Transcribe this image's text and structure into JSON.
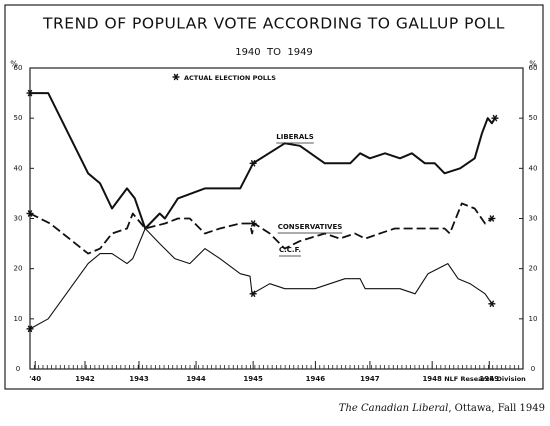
{
  "chart_data": {
    "type": "line",
    "title": "TREND OF POPULAR VOTE ACCORDING TO GALLUP POLL",
    "subtitle": "1940  TO  1949",
    "y_label": "%",
    "y2_label": "%",
    "xlim": [
      1940,
      1949.5
    ],
    "xticks": [
      {
        "value": 1940.1,
        "label": "'40"
      },
      {
        "value": 1941.06,
        "label": "1942"
      },
      {
        "value": 1942.1,
        "label": "1943"
      },
      {
        "value": 1943.2,
        "label": "1944"
      },
      {
        "value": 1944.3,
        "label": "1945"
      },
      {
        "value": 1945.5,
        "label": "1946"
      },
      {
        "value": 1946.55,
        "label": "1947"
      },
      {
        "value": 1947.75,
        "label": "1948"
      },
      {
        "value": 1948.85,
        "label": "1949"
      }
    ],
    "ylim": [
      0,
      60
    ],
    "yticks": [
      0,
      10,
      20,
      30,
      40,
      50,
      60
    ],
    "y2lim": [
      0,
      60
    ],
    "y2ticks": [
      0,
      10,
      20,
      30,
      40,
      50,
      60
    ],
    "series": [
      {
        "name": "LIBERALS",
        "color": "#111",
        "style": "solid",
        "x": [
          1940.0,
          1940.35,
          1941.12,
          1941.35,
          1941.58,
          1941.87,
          1942.02,
          1942.22,
          1942.5,
          1942.6,
          1942.85,
          1943.37,
          1944.05,
          1944.2,
          1944.3,
          1944.91,
          1945.2,
          1945.68,
          1946.17,
          1946.36,
          1946.55,
          1946.84,
          1947.13,
          1947.36,
          1947.61,
          1947.8,
          1947.99,
          1948.29,
          1948.57,
          1948.71,
          1948.82,
          1948.9,
          1948.96
        ],
        "values": [
          55,
          55,
          39,
          37,
          32,
          36,
          34,
          28,
          31,
          30,
          34,
          36,
          36,
          39,
          41,
          45,
          44.5,
          41,
          41,
          43,
          42,
          43,
          42,
          43,
          41,
          41,
          39,
          40,
          42,
          47,
          50,
          49,
          50
        ]
      },
      {
        "name": "CONSERVATIVES",
        "color": "#111",
        "style": "dashed",
        "x": [
          1940.0,
          1940.39,
          1941.12,
          1941.35,
          1941.58,
          1941.87,
          1941.98,
          1942.22,
          1942.6,
          1942.85,
          1943.08,
          1943.37,
          1943.66,
          1944.05,
          1944.24,
          1944.28,
          1944.32,
          1944.62,
          1944.91,
          1945.2,
          1945.68,
          1945.97,
          1946.26,
          1946.46,
          1946.74,
          1947.03,
          1947.51,
          1947.99,
          1948.09,
          1948.32,
          1948.57,
          1948.77,
          1948.9
        ],
        "values": [
          31,
          29,
          23,
          24,
          27,
          28,
          31,
          28,
          29,
          30,
          30,
          27,
          28,
          29,
          29,
          27,
          29,
          27,
          24,
          25.5,
          27,
          26,
          27,
          26,
          27,
          28,
          28,
          28,
          27,
          33,
          32,
          29,
          30
        ]
      },
      {
        "name": "C.C.F.",
        "color": "#111",
        "style": "thin",
        "x": [
          1940.0,
          1940.35,
          1941.12,
          1941.35,
          1941.58,
          1941.87,
          1941.98,
          1942.22,
          1942.5,
          1942.79,
          1943.08,
          1943.37,
          1943.66,
          1944.05,
          1944.24,
          1944.28,
          1944.62,
          1944.91,
          1945.49,
          1945.78,
          1946.07,
          1946.36,
          1946.46,
          1946.74,
          1947.13,
          1947.42,
          1947.67,
          1948.05,
          1948.25,
          1948.48,
          1948.77,
          1948.9
        ],
        "values": [
          8,
          10,
          21,
          23,
          23,
          21,
          22,
          28,
          25,
          22,
          21,
          24,
          22,
          19,
          18.5,
          15,
          17,
          16,
          16,
          17,
          18,
          18,
          16,
          16,
          16,
          15,
          19,
          21,
          18,
          17,
          15,
          13
        ]
      }
    ],
    "polls": {
      "name": "ACTUAL ELECTION POLLS",
      "x": [
        1940.0,
        1940.0,
        1940.0,
        1944.3,
        1944.3,
        1944.3,
        1948.96,
        1948.9,
        1948.9
      ],
      "values": [
        55,
        31,
        8,
        41,
        29,
        15,
        50,
        30,
        13
      ]
    },
    "annotation": "NLF Research Division",
    "caption": {
      "source": "The Canadian Liberal",
      "rest": ", Ottawa, Fall 1949"
    }
  }
}
